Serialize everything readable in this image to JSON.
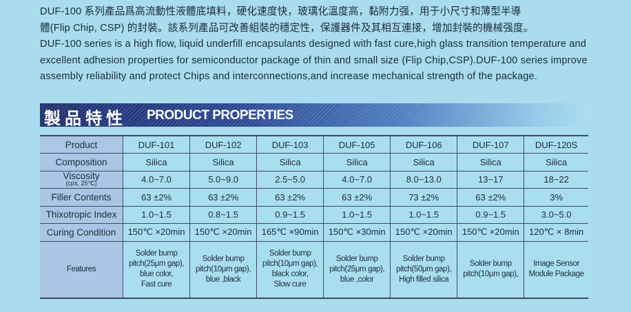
{
  "intro": {
    "zh_line1": "DUF-100 系列產品爲高流動性液體底填料，硬化速度快，玻璃化溫度高，黏附力强，用于小尺寸和薄型半導",
    "zh_line2": "體(Flip Chip, CSP) 的封裝。該系列產品可改善組裝的穩定性，保護器件及其相互連接，增加封裝的機械强度。",
    "en": "DUF-100 series is a high flow, liquid underfill encapsulants designed with fast cure,high glass transition temperature and excellent adhesion properties for semiconductor package of thin and small size (Flip Chip,CSP).DUF-100 series improve assembly reliability and protect Chips and interconnections,and increase mechanical strength of the package."
  },
  "section": {
    "title_zh": "製品特性",
    "title_en": "PRODUCT PROPERTIES"
  },
  "table": {
    "rows": [
      {
        "label": "Product",
        "values": [
          "DUF-101",
          "DUF-102",
          "DUF-103",
          "DUF-105",
          "DUF-106",
          "DUF-107",
          "DUF-120S"
        ]
      },
      {
        "label": "Composition",
        "values": [
          "Silica",
          "Silica",
          "Silica",
          "Silica",
          "Silica",
          "Silica",
          "Silica"
        ]
      },
      {
        "label": "Viscosity",
        "sublabel": "(cps, 25℃)",
        "values": [
          "4.0~7.0",
          "5.0~9.0",
          "2.5~5.0",
          "4.0~7.0",
          "8.0~13.0",
          "13~17",
          "18~22"
        ]
      },
      {
        "label": "Filler Contents",
        "values": [
          "63 ±2%",
          "63 ±2%",
          "63 ±2%",
          "63 ±2%",
          "73 ±2%",
          "63 ±2%",
          "3%"
        ]
      },
      {
        "label": "Thixotropic Index",
        "values": [
          "1.0~1.5",
          "0.8~1.5",
          "0.9~1.5",
          "1.0~1.5",
          "1.0~1.5",
          "0.9~1.5",
          "3.0~5.0"
        ]
      },
      {
        "label": "Curing Condition",
        "values": [
          "150℃ ×20min",
          "150℃ ×20min",
          "165℃ ×90min",
          "150℃ ×30min",
          "150℃ ×20min",
          "150℃ ×20min",
          "120℃ × 8min"
        ]
      },
      {
        "label": "Features",
        "values": [
          "Solder bump\npitch(25μm gap),\nblue color,\nFast cure",
          "Solder bump\npitch(10μm gap),\nblue ,black",
          "Solder bump\npitch(10μm gap),\nblack color,\nSlow cure",
          "Solder bump\npitch(25μm gap),\nblue ,color",
          "Solder bump\npitch(50μm gap),\nHigh filled silica",
          "Solder bump\npitch(10μm gap),",
          "Image Sensor\nModule Package"
        ]
      }
    ]
  }
}
